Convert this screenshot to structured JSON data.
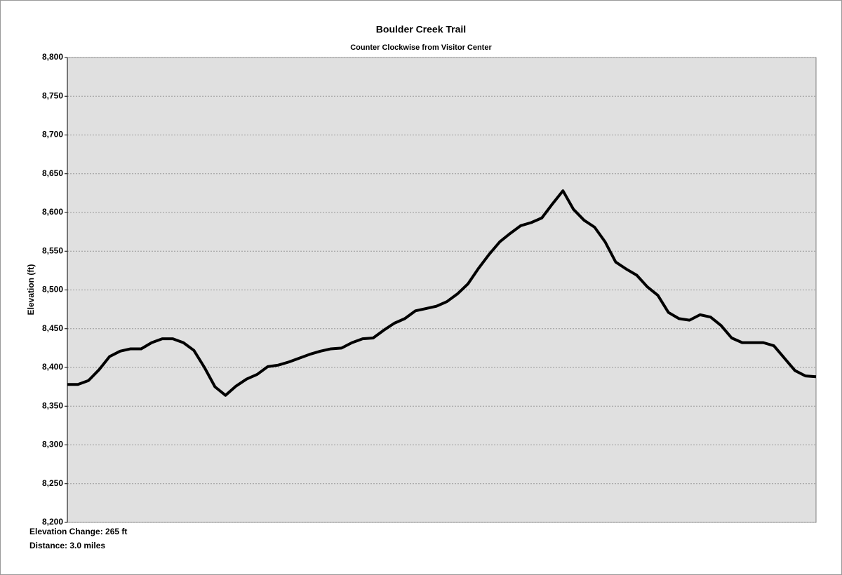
{
  "chart_data": {
    "type": "line",
    "title": "Boulder Creek Trail",
    "subtitle": "Counter Clockwise from Visitor Center",
    "y_label": "Elevation (ft)",
    "annotations": [
      "Elevation Change: 265 ft",
      "Distance: 3.0 miles"
    ],
    "series": [
      {
        "name": "Elevation",
        "color": "#000000",
        "values": [
          8378,
          8378,
          8383,
          8397,
          8414,
          8421,
          8424,
          8424,
          8432,
          8437,
          8437,
          8432,
          8422,
          8400,
          8375,
          8364,
          8376,
          8385,
          8391,
          8401,
          8403,
          8407,
          8412,
          8417,
          8421,
          8424,
          8425,
          8432,
          8437,
          8438,
          8448,
          8457,
          8463,
          8473,
          8476,
          8479,
          8485,
          8495,
          8508,
          8528,
          8546,
          8562,
          8573,
          8583,
          8587,
          8593,
          8611,
          8628,
          8604,
          8590,
          8581,
          8562,
          8536,
          8527,
          8519,
          8504,
          8493,
          8471,
          8463,
          8461,
          8468,
          8465,
          8454,
          8438,
          8432,
          8432,
          8432,
          8428,
          8412,
          8396,
          8389,
          8388
        ]
      }
    ],
    "ylim": [
      8200,
      8800
    ],
    "yticks": [
      {
        "value": 8200,
        "label": "8,200"
      },
      {
        "value": 8250,
        "label": "8,250"
      },
      {
        "value": 8300,
        "label": "8,300"
      },
      {
        "value": 8350,
        "label": "8,350"
      },
      {
        "value": 8400,
        "label": "8,400"
      },
      {
        "value": 8450,
        "label": "8,450"
      },
      {
        "value": 8500,
        "label": "8,500"
      },
      {
        "value": 8550,
        "label": "8,550"
      },
      {
        "value": 8600,
        "label": "8,600"
      },
      {
        "value": 8650,
        "label": "8,650"
      },
      {
        "value": 8700,
        "label": "8,700"
      },
      {
        "value": 8750,
        "label": "8,750"
      },
      {
        "value": 8800,
        "label": "8,800"
      }
    ],
    "grid": true,
    "background": "#e0e0e0"
  }
}
